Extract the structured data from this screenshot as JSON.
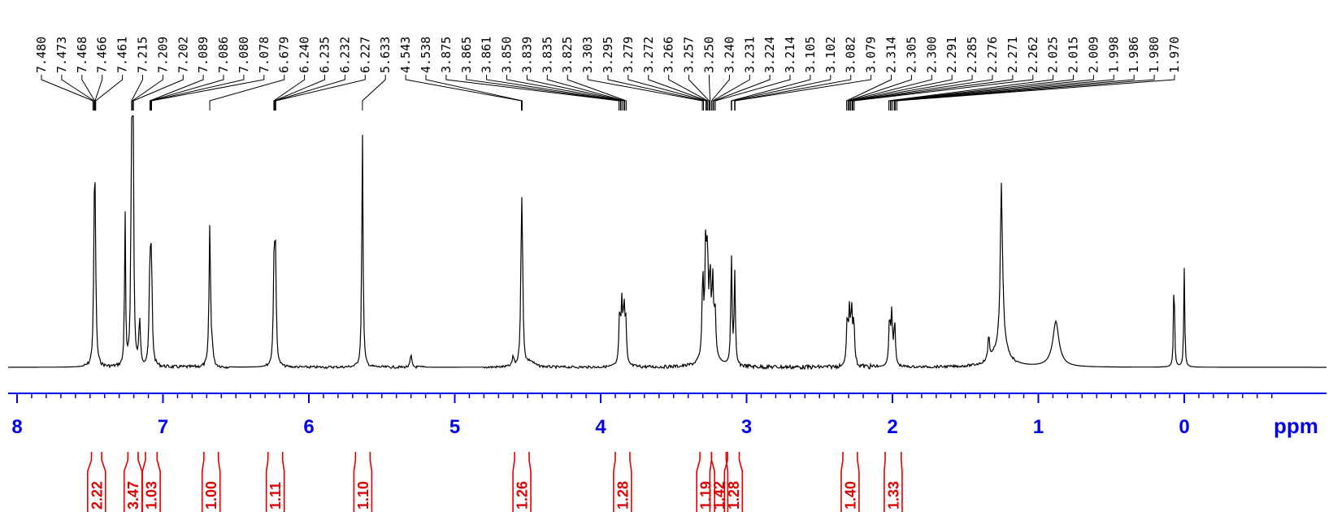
{
  "chart_data": {
    "type": "line",
    "x_unit": "ppm",
    "xlim": [
      8.4,
      -0.65
    ],
    "x_ticks": [
      8,
      7,
      6,
      5,
      4,
      3,
      2,
      1,
      0
    ],
    "x_tick_labels": [
      "8",
      "7",
      "6",
      "5",
      "4",
      "3",
      "2",
      "1",
      "0"
    ],
    "x_minor_step": 0.1,
    "axis_color": "#0000ee",
    "integral_color": "#dd0000",
    "peak_labels": [
      "7.480",
      "7.473",
      "7.468",
      "7.466",
      "7.461",
      "7.215",
      "7.209",
      "7.202",
      "7.089",
      "7.086",
      "7.080",
      "7.078",
      "6.679",
      "6.240",
      "6.235",
      "6.232",
      "6.227",
      "5.633",
      "4.543",
      "4.538",
      "3.875",
      "3.865",
      "3.861",
      "3.850",
      "3.839",
      "3.835",
      "3.825",
      "3.303",
      "3.295",
      "3.279",
      "3.272",
      "3.266",
      "3.257",
      "3.250",
      "3.240",
      "3.231",
      "3.224",
      "3.214",
      "3.105",
      "3.102",
      "3.082",
      "3.079",
      "2.314",
      "2.305",
      "2.300",
      "2.291",
      "2.285",
      "2.276",
      "2.271",
      "2.262",
      "2.025",
      "2.015",
      "2.009",
      "1.998",
      "1.986",
      "1.980",
      "1.970"
    ],
    "peaks": [
      {
        "ppm": 7.47,
        "height": 0.47,
        "width": 0.006
      },
      {
        "ppm": 7.465,
        "height": 0.44,
        "width": 0.006
      },
      {
        "ppm": 7.26,
        "height": 0.62,
        "width": 0.004
      },
      {
        "ppm": 7.215,
        "height": 0.95,
        "width": 0.005
      },
      {
        "ppm": 7.205,
        "height": 0.97,
        "width": 0.005
      },
      {
        "ppm": 7.16,
        "height": 0.18,
        "width": 0.006
      },
      {
        "ppm": 7.089,
        "height": 0.38,
        "width": 0.006
      },
      {
        "ppm": 7.079,
        "height": 0.38,
        "width": 0.006
      },
      {
        "ppm": 6.679,
        "height": 0.56,
        "width": 0.006
      },
      {
        "ppm": 6.662,
        "height": 0.06,
        "width": 0.006
      },
      {
        "ppm": 6.238,
        "height": 0.39,
        "width": 0.006
      },
      {
        "ppm": 6.229,
        "height": 0.39,
        "width": 0.006
      },
      {
        "ppm": 5.633,
        "height": 0.93,
        "width": 0.005
      },
      {
        "ppm": 5.3,
        "height": 0.05,
        "width": 0.006
      },
      {
        "ppm": 4.543,
        "height": 0.4,
        "width": 0.006
      },
      {
        "ppm": 4.538,
        "height": 0.38,
        "width": 0.006
      },
      {
        "ppm": 4.6,
        "height": 0.04,
        "width": 0.006
      },
      {
        "ppm": 3.87,
        "height": 0.2,
        "width": 0.006
      },
      {
        "ppm": 3.855,
        "height": 0.23,
        "width": 0.006
      },
      {
        "ppm": 3.84,
        "height": 0.21,
        "width": 0.006
      },
      {
        "ppm": 3.828,
        "height": 0.16,
        "width": 0.006
      },
      {
        "ppm": 3.3,
        "height": 0.32,
        "width": 0.006
      },
      {
        "ppm": 3.28,
        "height": 0.42,
        "width": 0.006
      },
      {
        "ppm": 3.268,
        "height": 0.36,
        "width": 0.006
      },
      {
        "ppm": 3.25,
        "height": 0.3,
        "width": 0.006
      },
      {
        "ppm": 3.232,
        "height": 0.28,
        "width": 0.006
      },
      {
        "ppm": 3.216,
        "height": 0.18,
        "width": 0.006
      },
      {
        "ppm": 3.104,
        "height": 0.43,
        "width": 0.005
      },
      {
        "ppm": 3.081,
        "height": 0.36,
        "width": 0.005
      },
      {
        "ppm": 2.31,
        "height": 0.18,
        "width": 0.006
      },
      {
        "ppm": 2.295,
        "height": 0.2,
        "width": 0.006
      },
      {
        "ppm": 2.28,
        "height": 0.21,
        "width": 0.006
      },
      {
        "ppm": 2.265,
        "height": 0.17,
        "width": 0.006
      },
      {
        "ppm": 2.02,
        "height": 0.18,
        "width": 0.006
      },
      {
        "ppm": 2.005,
        "height": 0.2,
        "width": 0.006
      },
      {
        "ppm": 1.985,
        "height": 0.17,
        "width": 0.006
      },
      {
        "ppm": 1.34,
        "height": 0.1,
        "width": 0.006
      },
      {
        "ppm": 1.255,
        "height": 0.39,
        "width": 0.006
      },
      {
        "ppm": 1.25,
        "height": 0.3,
        "width": 0.012
      },
      {
        "ppm": 0.88,
        "height": 0.1,
        "width": 0.02
      },
      {
        "ppm": 0.07,
        "height": 0.39,
        "width": 0.004
      },
      {
        "ppm": 0.0,
        "height": 0.39,
        "width": 0.004
      }
    ],
    "integrals": [
      {
        "from": 7.49,
        "to": 7.42,
        "value": "2.22"
      },
      {
        "from": 7.24,
        "to": 7.17,
        "value": "3.47"
      },
      {
        "from": 7.12,
        "to": 7.04,
        "value": "1.03"
      },
      {
        "from": 6.72,
        "to": 6.62,
        "value": "1.00"
      },
      {
        "from": 6.28,
        "to": 6.18,
        "value": "1.11"
      },
      {
        "from": 5.68,
        "to": 5.58,
        "value": "1.10"
      },
      {
        "from": 4.59,
        "to": 4.49,
        "value": "1.26"
      },
      {
        "from": 3.9,
        "to": 3.8,
        "value": "1.28"
      },
      {
        "from": 3.32,
        "to": 3.24,
        "value": "1.19"
      },
      {
        "from": 3.24,
        "to": 3.14,
        "value": "1.42"
      },
      {
        "from": 3.13,
        "to": 3.05,
        "value": "1.28"
      },
      {
        "from": 2.34,
        "to": 2.24,
        "value": "1.40"
      },
      {
        "from": 2.05,
        "to": 1.94,
        "value": "1.33"
      }
    ]
  }
}
